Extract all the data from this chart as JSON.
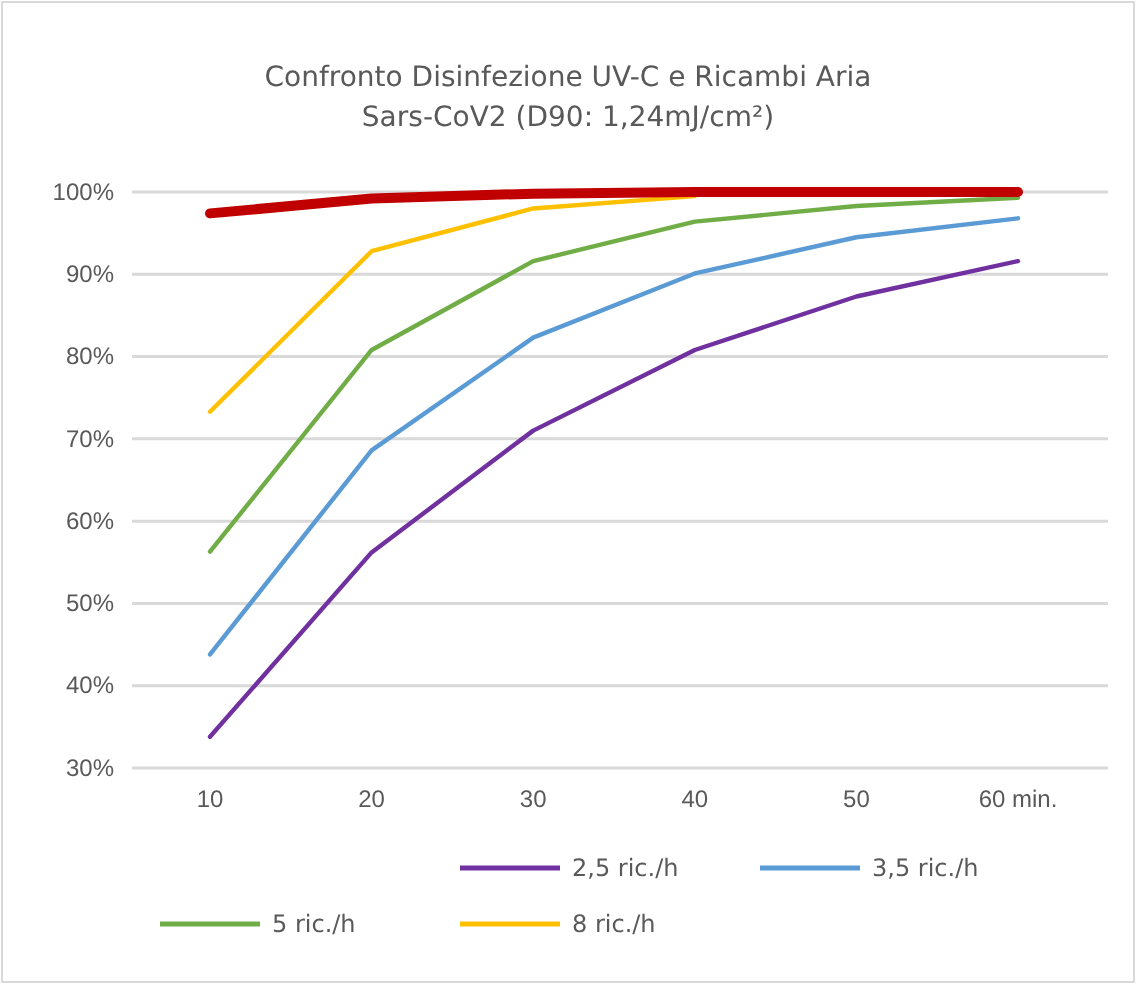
{
  "chart_data": {
    "type": "line",
    "title": "Confronto Disinfezione UV-C e Ricambi Aria",
    "subtitle": "Sars-CoV2 (D90: 1,24mJ/cm²)",
    "categories": [
      "10",
      "20",
      "30",
      "40",
      "50",
      "60 min."
    ],
    "series": [
      {
        "color": "#c00000",
        "values": [
          97.4,
          99.2,
          99.8,
          100,
          100,
          100
        ]
      },
      {
        "name": "2,5 ric./h",
        "color": "#7030a0",
        "values": [
          33.8,
          56.2,
          71.0,
          80.8,
          87.3,
          91.6
        ]
      },
      {
        "name": "3,5 ric./h",
        "color": "#5b9bd5",
        "values": [
          43.8,
          68.6,
          82.3,
          90.1,
          94.5,
          96.8
        ]
      },
      {
        "name": "5 ric./h",
        "color": "#70ad47",
        "values": [
          56.3,
          80.8,
          91.6,
          96.4,
          98.3,
          99.3
        ]
      },
      {
        "name": "8 ric./h",
        "color": "#ffc000",
        "values": [
          73.3,
          92.8,
          98.0,
          99.5,
          null,
          null
        ]
      }
    ],
    "ylim": [
      30,
      100
    ],
    "yticks": [
      {
        "value": 30,
        "label": "30%"
      },
      {
        "value": 40,
        "label": "40%"
      },
      {
        "value": 50,
        "label": "50%"
      },
      {
        "value": 60,
        "label": "60%"
      },
      {
        "value": 70,
        "label": "70%"
      },
      {
        "value": 80,
        "label": "80%"
      },
      {
        "value": 90,
        "label": "90%"
      },
      {
        "value": 100,
        "label": "100%"
      }
    ],
    "grid": "y",
    "legend": "bottom",
    "marker": "none",
    "line_style": "solid"
  }
}
